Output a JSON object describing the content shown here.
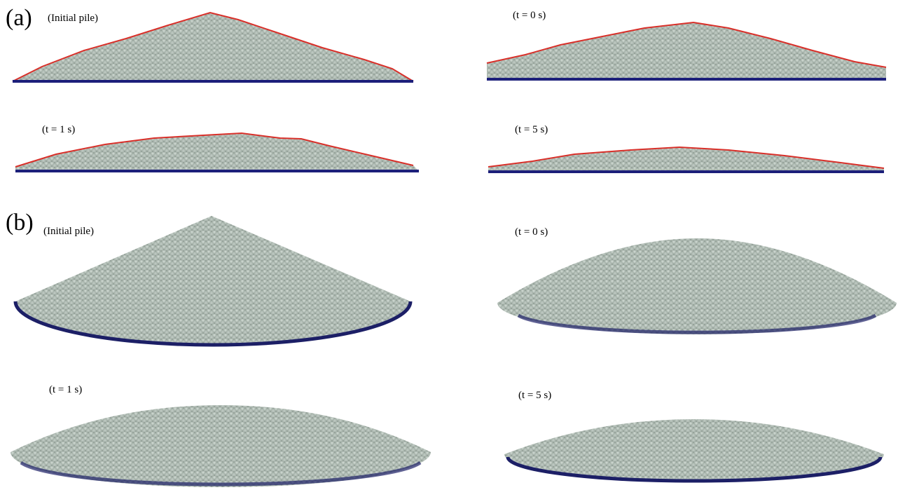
{
  "panels": [
    {
      "label": "(a)",
      "subpanels": [
        {
          "caption": "(Initial pile)"
        },
        {
          "caption": "(t = 0 s)"
        },
        {
          "caption": "(t = 1 s)"
        },
        {
          "caption": "(t = 5 s)"
        }
      ]
    },
    {
      "label": "(b)",
      "subpanels": [
        {
          "caption": "(Initial pile)"
        },
        {
          "caption": "(t = 0 s)"
        },
        {
          "caption": "(t = 1 s)"
        },
        {
          "caption": "(t = 5 s)"
        }
      ]
    }
  ]
}
